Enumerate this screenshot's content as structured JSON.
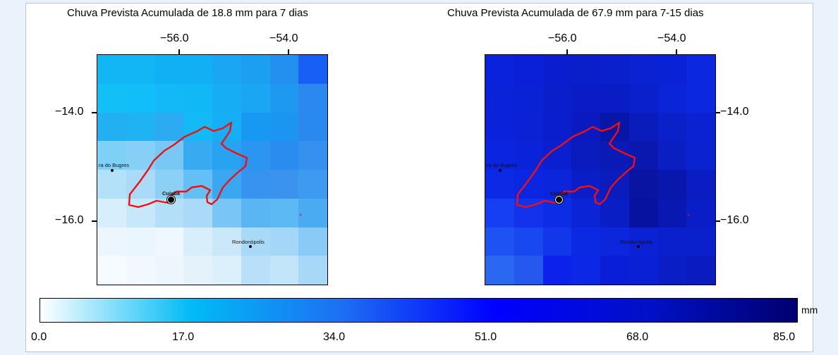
{
  "maps": [
    {
      "title": "Chuva Prevista Acumulada de 18.8 mm para 7 dias",
      "lon_ticks": [
        "−56.0",
        "−54.0"
      ],
      "lat_ticks": [
        "−14.0",
        "−16.0"
      ],
      "lat_tick_side": "left",
      "grid_colors": [
        [
          "#12b6f5",
          "#12b6f5",
          "#10b0f4",
          "#11aff4",
          "#1aa6f2",
          "#1d9ff1",
          "#238ff0",
          "#185ff5"
        ],
        [
          "#12c0f7",
          "#11bef7",
          "#13b8f6",
          "#11b8f6",
          "#16adf4",
          "#1aa6f3",
          "#1f98f1",
          "#2a88ef"
        ],
        [
          "#22b0f3",
          "#20b3f4",
          "#2cabf2",
          "#14baf6",
          "#16aef4",
          "#1798f2",
          "#1c94f1",
          "#2989ef"
        ],
        [
          "#7ed0f7",
          "#86cff6",
          "#77c8f5",
          "#37aaf1",
          "#27a3f2",
          "#2a96f1",
          "#2b8cef",
          "#3690ef"
        ],
        [
          "#b3e1fa",
          "#a9dbf8",
          "#8dd0f6",
          "#63c0f4",
          "#3aa7f1",
          "#3694f0",
          "#3b92ef",
          "#3e99f0"
        ],
        [
          "#d7eefc",
          "#c7e7fa",
          "#b4dff9",
          "#aadaf8",
          "#79c5f5",
          "#5ab6f3",
          "#5cb9f4",
          "#4aaaf2"
        ],
        [
          "#edf6fd",
          "#eaf6fd",
          "#eef8fe",
          "#d9eefb",
          "#cae8fa",
          "#a8daf8",
          "#a4d7f7",
          "#89cbf6"
        ],
        [
          "#f6fbff",
          "#f1f8fe",
          "#edf6fd",
          "#e4f2fc",
          "#dcf0fb",
          "#b8e1f9",
          "#c2e5fa",
          "#a8d8f8"
        ]
      ],
      "cities": [
        {
          "name": "ra do Bugres"
        },
        {
          "name": "Cuiabá"
        },
        {
          "name": "Rondonópolis"
        }
      ]
    },
    {
      "title": "Chuva Prevista Acumulada de 67.9 mm para 7-15 dias",
      "lon_ticks": [
        "−56.0",
        "−54.0"
      ],
      "lat_ticks": [
        "−14.0",
        "−16.0"
      ],
      "lat_tick_side": "right",
      "grid_colors": [
        [
          "#0a22dc",
          "#0a20d8",
          "#0a1ecf",
          "#0a1ec9",
          "#0a20cc",
          "#0a22d2",
          "#0a22d6",
          "#0b28e0"
        ],
        [
          "#0a22d8",
          "#0a22d6",
          "#0a1ecb",
          "#0a1cc6",
          "#0a1dc4",
          "#0a20cc",
          "#0a24d8",
          "#0b28e0"
        ],
        [
          "#0a22da",
          "#0a21d6",
          "#0a1ece",
          "#0a1ac0",
          "#0816a8",
          "#0a1cbc",
          "#0a20c8",
          "#0a22d2"
        ],
        [
          "#0b24df",
          "#0a22d8",
          "#0a20d0",
          "#0a1cbd",
          "#0a1ab7",
          "#0a18b0",
          "#0a1ec2",
          "#0a22d0"
        ],
        [
          "#0c2ae6",
          "#0b26e2",
          "#0b25dc",
          "#0a1ec8",
          "#0a1cbb",
          "#0914a2",
          "#0a17ac",
          "#0a1dc2"
        ],
        [
          "#163ef2",
          "#1232ec",
          "#0d2ce6",
          "#0a24d6",
          "#0a1ec6",
          "#0812a0",
          "#0a18b2",
          "#0a1ec8"
        ],
        [
          "#1e52f3",
          "#1848f0",
          "#1236ea",
          "#0b28e2",
          "#0b26dc",
          "#0a22d4",
          "#0a20cc",
          "#0a20cc"
        ],
        [
          "#2a68f2",
          "#2458ef",
          "#0c22ec",
          "#0c28e6",
          "#0a1ed8",
          "#0a20d4",
          "#0a1ec6",
          "#0a1cbf"
        ]
      ],
      "cities": [
        {
          "name": "ra do Bugres"
        },
        {
          "name": "Cuiabá"
        },
        {
          "name": "Rondonópolis"
        }
      ]
    }
  ],
  "colorbar": {
    "unit": "mm",
    "labels": [
      "0.0",
      "17.0",
      "34.0",
      "51.0",
      "68.0",
      "85.0"
    ],
    "colors": [
      "#ffffff",
      "#00bbf5",
      "#1e6ef3",
      "#0000ff",
      "#0011c8",
      "#000070"
    ]
  },
  "colors": {
    "outline": "#ee1111"
  }
}
